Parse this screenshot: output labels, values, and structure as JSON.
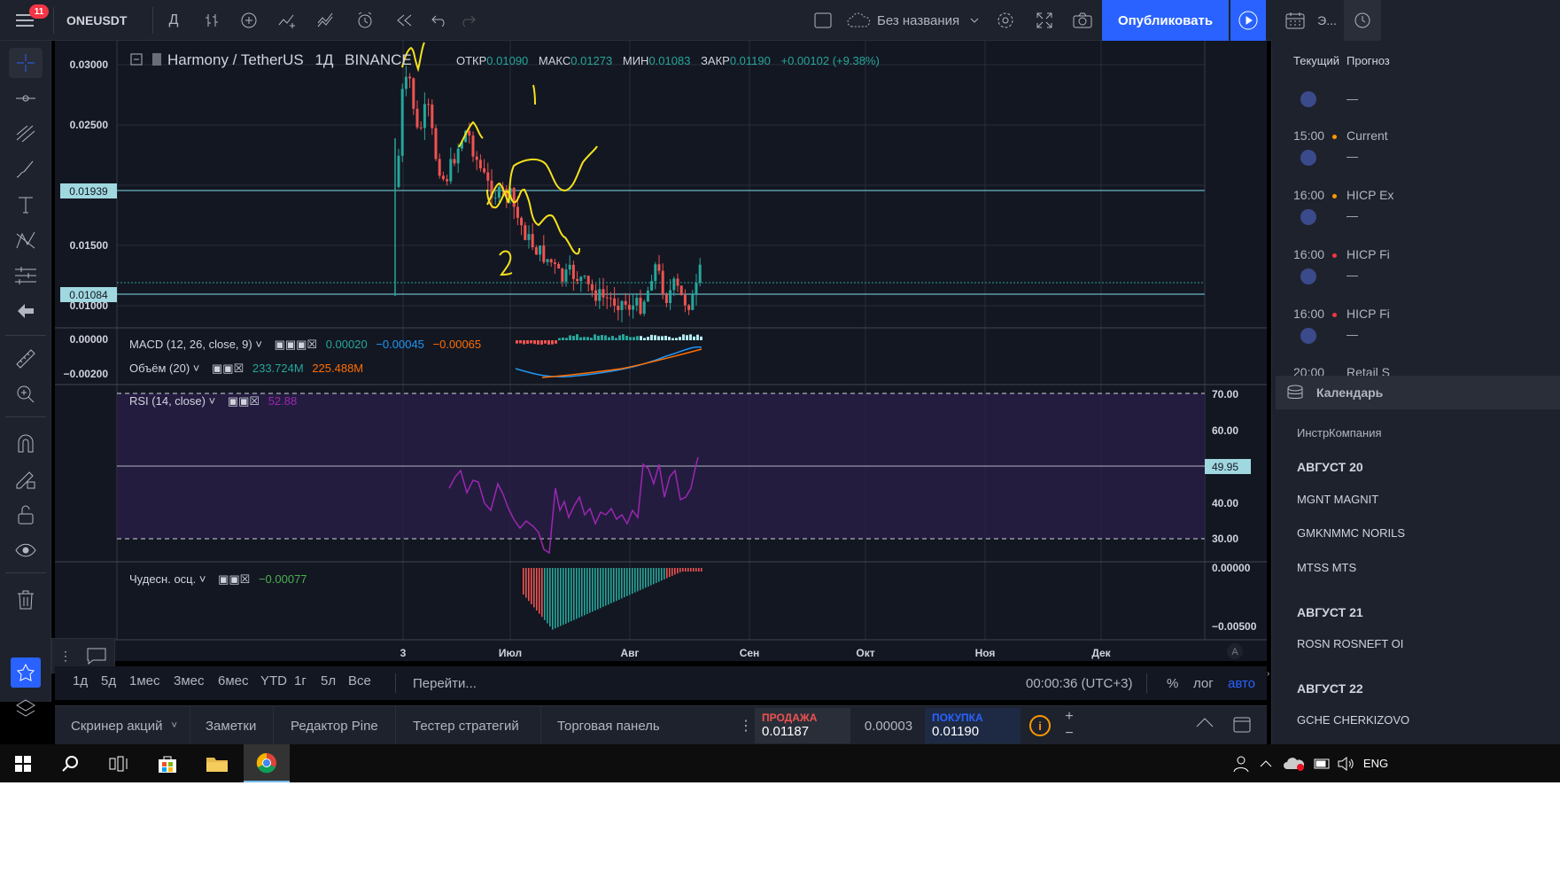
{
  "topbar": {
    "notification_count": "11",
    "symbol": "ONEUSDT",
    "interval": "Д",
    "layout_name": "Без названия",
    "publish_label": "Опубликовать",
    "right_tab_label": "Э..."
  },
  "legend": {
    "title": "Harmony / TetherUS",
    "interval": "1Д",
    "exchange": "BINANCE",
    "open_label": "ОТКР",
    "open": "0.01090",
    "high_label": "МАКС",
    "high": "0.01273",
    "low_label": "МИН",
    "low": "0.01083",
    "close_label": "ЗАКР",
    "close": "0.01190",
    "change": "+0.00102 (+9.38%)"
  },
  "price_axis": {
    "ticks": [
      "0.03000",
      "0.02500",
      "0.01500",
      "0.01000"
    ],
    "hline1": "0.01939",
    "hline2": "0.01084"
  },
  "macd": {
    "label": "MACD (12, 26, close, 9)",
    "v1": "0.00020",
    "v2": "−0.00045",
    "v3": "−0.00065",
    "ticks": [
      "0.00000",
      "−0.00200"
    ]
  },
  "volume": {
    "label": "Объём (20)",
    "v1": "233.724M",
    "v2": "225.488M"
  },
  "rsi": {
    "label": "RSI (14, close)",
    "value": "52.88",
    "ticks": [
      "70.00",
      "60.00",
      "40.00",
      "30.00"
    ],
    "marker": "49.95"
  },
  "ao": {
    "label": "Чудесн. осц.",
    "value": "−0.00077",
    "ticks": [
      "0.00000",
      "−0.00500"
    ]
  },
  "annotations": {
    "mark1": "1",
    "mark2": "2"
  },
  "time_axis": [
    "3",
    "Июл",
    "Авг",
    "Сен",
    "Окт",
    "Ноя",
    "Дек"
  ],
  "time_axis_auto": "A",
  "timebar": {
    "ranges": [
      "1д",
      "5д",
      "1мес",
      "3мес",
      "6мес",
      "YTD",
      "1г",
      "5л",
      "Все"
    ],
    "goto": "Перейти...",
    "clock": "00:00:36 (UTC+3)",
    "percent": "%",
    "log": "лог",
    "auto": "авто"
  },
  "bottom_panel": {
    "tabs": [
      "Скринер акций",
      "Заметки",
      "Редактор Pine",
      "Тестер стратегий",
      "Торговая панель"
    ],
    "sell_label": "ПРОДАЖА",
    "sell_price": "0.01187",
    "spread": "0.00003",
    "buy_label": "ПОКУПКА",
    "buy_price": "0.01190"
  },
  "right_panel": {
    "col1": "Текущий",
    "col2": "Прогноз",
    "events": [
      {
        "time": "",
        "name": ""
      },
      {
        "time": "15:00",
        "name": "Current"
      },
      {
        "time": "16:00",
        "name": "HICP Ex"
      },
      {
        "time": "16:00",
        "name": "HICP Fi"
      },
      {
        "time": "16:00",
        "name": "HICP Fi"
      }
    ],
    "event_dash": "—",
    "partial_time": "20:00",
    "partial_name": "Retail S",
    "calendar_title": "Календарь",
    "cal_col1": "Инстр",
    "cal_col2": "Компания",
    "groups": [
      {
        "date": "АВГУСТ 20",
        "items": [
          "MGNT MAGNIT",
          "GMKNMMC NORILS",
          "MTSS MTS"
        ]
      },
      {
        "date": "АВГУСТ 21",
        "items": [
          "ROSN ROSNEFT OI"
        ]
      },
      {
        "date": "АВГУСТ 22",
        "items": [
          "GCHE CHERKIZOVO"
        ]
      }
    ]
  },
  "taskbar": {
    "lang": "ENG"
  },
  "colors": {
    "bg": "#131722",
    "panel": "#1e222d",
    "up": "#26a69a",
    "down": "#ef5350",
    "accent": "#2962ff",
    "rsi": "#7e57c2",
    "drawing": "#ffeb3b"
  }
}
